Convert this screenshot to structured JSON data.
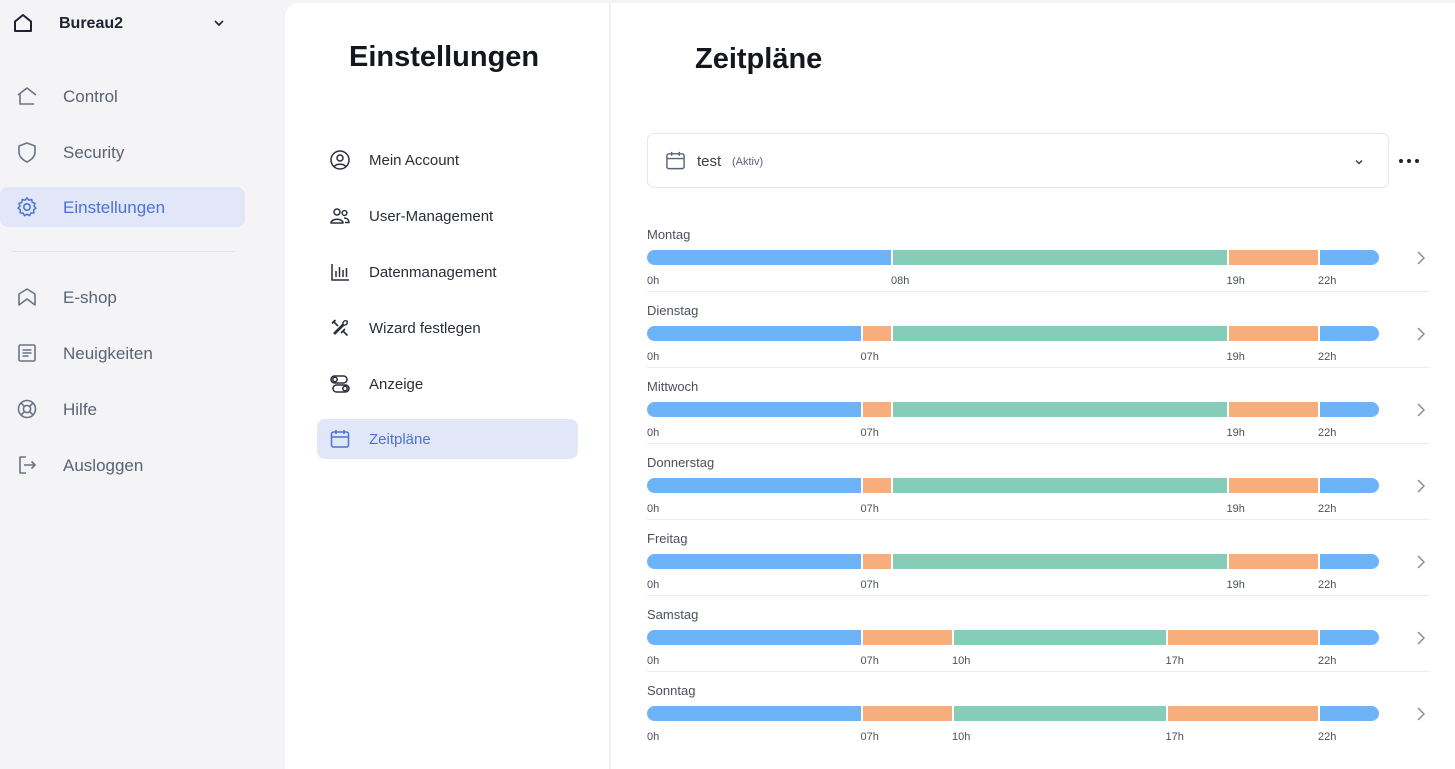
{
  "colors": {
    "blue": "#6cb4f7",
    "green": "#86cdb7",
    "orange": "#f7ad7c",
    "accent": "#4a72d9"
  },
  "nav": {
    "home_name": "Bureau2",
    "items": [
      {
        "label": "Control",
        "icon": "home-icon"
      },
      {
        "label": "Security",
        "icon": "shield-icon"
      },
      {
        "label": "Einstellungen",
        "icon": "gear-icon",
        "active": true
      },
      {
        "label": "E-shop",
        "icon": "shop-icon"
      },
      {
        "label": "Neuigkeiten",
        "icon": "news-icon"
      },
      {
        "label": "Hilfe",
        "icon": "lifebuoy-icon"
      },
      {
        "label": "Ausloggen",
        "icon": "logout-icon"
      }
    ]
  },
  "settings": {
    "title": "Einstellungen",
    "items": [
      {
        "label": "Mein Account",
        "icon": "user-circle-icon"
      },
      {
        "label": "User-Management",
        "icon": "users-icon"
      },
      {
        "label": "Datenmanagement",
        "icon": "bar-chart-icon"
      },
      {
        "label": "Wizard festlegen",
        "icon": "tools-icon"
      },
      {
        "label": "Anzeige",
        "icon": "toggles-icon"
      },
      {
        "label": "Zeitpläne",
        "icon": "calendar-icon",
        "active": true
      }
    ]
  },
  "schedules": {
    "title": "Zeitpläne",
    "selected_name": "test",
    "selected_status": "(Aktiv)",
    "days": [
      {
        "name": "Montag",
        "segments": [
          [
            "blue",
            0,
            8
          ],
          [
            "green",
            8,
            19
          ],
          [
            "orange",
            19,
            22
          ],
          [
            "blue",
            22,
            24
          ]
        ],
        "ticks": [
          "0h",
          "08h",
          "19h",
          "22h"
        ]
      },
      {
        "name": "Dienstag",
        "segments": [
          [
            "blue",
            0,
            7
          ],
          [
            "orange",
            7,
            8
          ],
          [
            "green",
            8,
            19
          ],
          [
            "orange",
            19,
            22
          ],
          [
            "blue",
            22,
            24
          ]
        ],
        "ticks": [
          "0h",
          "07h",
          "19h",
          "22h"
        ]
      },
      {
        "name": "Mittwoch",
        "segments": [
          [
            "blue",
            0,
            7
          ],
          [
            "orange",
            7,
            8
          ],
          [
            "green",
            8,
            19
          ],
          [
            "orange",
            19,
            22
          ],
          [
            "blue",
            22,
            24
          ]
        ],
        "ticks": [
          "0h",
          "07h",
          "19h",
          "22h"
        ]
      },
      {
        "name": "Donnerstag",
        "segments": [
          [
            "blue",
            0,
            7
          ],
          [
            "orange",
            7,
            8
          ],
          [
            "green",
            8,
            19
          ],
          [
            "orange",
            19,
            22
          ],
          [
            "blue",
            22,
            24
          ]
        ],
        "ticks": [
          "0h",
          "07h",
          "19h",
          "22h"
        ]
      },
      {
        "name": "Freitag",
        "segments": [
          [
            "blue",
            0,
            7
          ],
          [
            "orange",
            7,
            8
          ],
          [
            "green",
            8,
            19
          ],
          [
            "orange",
            19,
            22
          ],
          [
            "blue",
            22,
            24
          ]
        ],
        "ticks": [
          "0h",
          "07h",
          "19h",
          "22h"
        ]
      },
      {
        "name": "Samstag",
        "segments": [
          [
            "blue",
            0,
            7
          ],
          [
            "orange",
            7,
            10
          ],
          [
            "green",
            10,
            17
          ],
          [
            "orange",
            17,
            22
          ],
          [
            "blue",
            22,
            24
          ]
        ],
        "ticks": [
          "0h",
          "07h",
          "10h",
          "17h",
          "22h"
        ]
      },
      {
        "name": "Sonntag",
        "segments": [
          [
            "blue",
            0,
            7
          ],
          [
            "orange",
            7,
            10
          ],
          [
            "green",
            10,
            17
          ],
          [
            "orange",
            17,
            22
          ],
          [
            "blue",
            22,
            24
          ]
        ],
        "ticks": [
          "0h",
          "07h",
          "10h",
          "17h",
          "22h"
        ]
      }
    ]
  }
}
